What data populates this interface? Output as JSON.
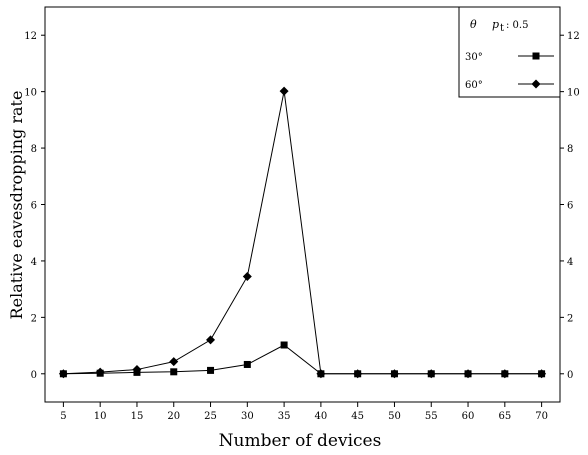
{
  "chart_data": {
    "type": "line",
    "xlabel": "Number of devices",
    "ylabel": "Relative eavesdropping rate",
    "x": [
      5,
      10,
      15,
      20,
      25,
      30,
      35,
      40,
      45,
      50,
      55,
      60,
      65,
      70
    ],
    "xlim": [
      2.5,
      72.5
    ],
    "ylim": [
      -1,
      13
    ],
    "yticks": [
      0,
      2,
      4,
      6,
      8,
      10,
      12
    ],
    "xticks": [
      5,
      10,
      15,
      20,
      25,
      30,
      35,
      40,
      45,
      50,
      55,
      60,
      65,
      70
    ],
    "grid": false,
    "legend_position": "top-right",
    "legend": {
      "header_theta": "θ",
      "header_p": "p",
      "header_p_sub": "t",
      "header_value": ": 0.5"
    },
    "series": [
      {
        "name": "30°",
        "marker": "square",
        "color": "#000000",
        "values": [
          0,
          0.02,
          0.05,
          0.07,
          0.12,
          0.33,
          1.02,
          0,
          0,
          0,
          0,
          0,
          0,
          0
        ]
      },
      {
        "name": "60°",
        "marker": "diamond",
        "color": "#000000",
        "values": [
          0,
          0.06,
          0.15,
          0.43,
          1.2,
          3.45,
          10.02,
          0,
          0,
          0,
          0,
          0,
          0,
          0
        ]
      }
    ]
  }
}
